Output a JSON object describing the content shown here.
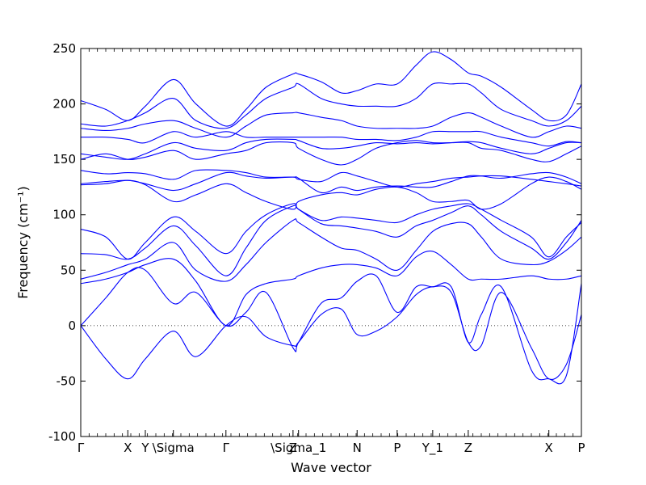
{
  "chart_data": {
    "type": "line",
    "title": "",
    "xlabel": "Wave vector",
    "ylabel": "Frequency (cm⁻¹)",
    "ylim": [
      -100,
      250
    ],
    "xlim": [
      0,
      1
    ],
    "yticks": [
      -100,
      -50,
      0,
      50,
      100,
      150,
      200,
      250
    ],
    "grid": false,
    "legend": "none",
    "line_color": "#0000ff",
    "high_symmetry_points": [
      {
        "label": "Γ",
        "x": 0.0
      },
      {
        "label": "X",
        "x": 0.094
      },
      {
        "label": "Y",
        "x": 0.129
      },
      {
        "label": "\\Sigma",
        "x": 0.185
      },
      {
        "label": "Γ",
        "x": 0.29
      },
      {
        "label": "Z",
        "x": 0.424
      },
      {
        "label": "\\Sigma_1",
        "x": 0.435
      },
      {
        "label": "N",
        "x": 0.552
      },
      {
        "label": "P",
        "x": 0.632
      },
      {
        "label": "Y_1",
        "x": 0.703
      },
      {
        "label": "Z",
        "x": 0.774
      },
      {
        "label": "X",
        "x": 0.935
      },
      {
        "label": "P",
        "x": 1.0
      }
    ],
    "series": [
      {
        "x": [
          0,
          0.05,
          0.094,
          0.129,
          0.185,
          0.23,
          0.29,
          0.33,
          0.37,
          0.424,
          0.435,
          0.48,
          0.52,
          0.552,
          0.59,
          0.632,
          0.67,
          0.703,
          0.74,
          0.774,
          0.8,
          0.84,
          0.9,
          0.935,
          0.97,
          1.0
        ],
        "y": [
          0,
          -30,
          -48,
          -30,
          -5,
          -28,
          0,
          8,
          -10,
          -18,
          -15,
          10,
          15,
          -8,
          -5,
          8,
          28,
          35,
          30,
          -15,
          -18,
          30,
          -20,
          -48,
          -35,
          10
        ]
      },
      {
        "x": [
          0,
          0.05,
          0.094,
          0.129,
          0.185,
          0.23,
          0.29,
          0.33,
          0.37,
          0.424,
          0.435,
          0.48,
          0.52,
          0.552,
          0.59,
          0.632,
          0.67,
          0.703,
          0.74,
          0.774,
          0.8,
          0.84,
          0.9,
          0.935,
          0.97,
          1.0
        ],
        "y": [
          0,
          25,
          48,
          50,
          20,
          30,
          0,
          12,
          30,
          -20,
          -15,
          20,
          25,
          40,
          45,
          12,
          35,
          35,
          35,
          -15,
          10,
          35,
          -40,
          -48,
          -45,
          38
        ]
      },
      {
        "x": [
          0,
          0.05,
          0.094,
          0.129,
          0.185,
          0.23,
          0.29,
          0.33,
          0.37,
          0.424,
          0.435,
          0.48,
          0.52,
          0.552,
          0.59,
          0.632,
          0.67,
          0.703,
          0.74,
          0.774,
          0.8,
          0.84,
          0.9,
          0.935,
          0.97,
          1.0
        ],
        "y": [
          38,
          42,
          48,
          55,
          60,
          40,
          0,
          28,
          38,
          42,
          45,
          52,
          55,
          55,
          52,
          45,
          62,
          67,
          55,
          42,
          42,
          42,
          45,
          42,
          42,
          45
        ]
      },
      {
        "x": [
          0,
          0.05,
          0.094,
          0.129,
          0.185,
          0.23,
          0.29,
          0.33,
          0.37,
          0.424,
          0.435,
          0.48,
          0.52,
          0.552,
          0.59,
          0.632,
          0.67,
          0.703,
          0.74,
          0.774,
          0.8,
          0.84,
          0.9,
          0.935,
          0.97,
          1.0
        ],
        "y": [
          42,
          48,
          55,
          60,
          75,
          50,
          40,
          55,
          75,
          95,
          93,
          80,
          70,
          68,
          60,
          50,
          68,
          85,
          92,
          92,
          80,
          60,
          55,
          58,
          68,
          80
        ]
      },
      {
        "x": [
          0,
          0.05,
          0.094,
          0.129,
          0.185,
          0.23,
          0.29,
          0.33,
          0.37,
          0.424,
          0.435,
          0.48,
          0.52,
          0.552,
          0.59,
          0.632,
          0.67,
          0.703,
          0.74,
          0.774,
          0.8,
          0.84,
          0.9,
          0.935,
          0.97,
          1.0
        ],
        "y": [
          65,
          64,
          60,
          70,
          90,
          72,
          45,
          70,
          95,
          108,
          105,
          92,
          90,
          88,
          85,
          80,
          90,
          95,
          102,
          108,
          100,
          85,
          70,
          60,
          75,
          95
        ]
      },
      {
        "x": [
          0,
          0.05,
          0.094,
          0.129,
          0.185,
          0.23,
          0.29,
          0.33,
          0.37,
          0.424,
          0.435,
          0.48,
          0.52,
          0.552,
          0.59,
          0.632,
          0.67,
          0.703,
          0.74,
          0.774,
          0.8,
          0.84,
          0.9,
          0.935,
          0.97,
          1.0
        ],
        "y": [
          87,
          80,
          60,
          75,
          98,
          85,
          65,
          85,
          100,
          110,
          105,
          95,
          98,
          97,
          95,
          93,
          100,
          105,
          108,
          110,
          105,
          95,
          80,
          62,
          80,
          93
        ]
      },
      {
        "x": [
          0,
          0.05,
          0.094,
          0.129,
          0.185,
          0.23,
          0.29,
          0.33,
          0.37,
          0.424,
          0.435,
          0.48,
          0.52,
          0.552,
          0.59,
          0.632,
          0.67,
          0.703,
          0.74,
          0.774,
          0.8,
          0.84,
          0.9,
          0.935,
          0.97,
          1.0
        ],
        "y": [
          127,
          128,
          131,
          127,
          112,
          118,
          128,
          120,
          112,
          105,
          112,
          118,
          120,
          118,
          123,
          125,
          120,
          112,
          112,
          113,
          105,
          110,
          128,
          134,
          130,
          123
        ]
      },
      {
        "x": [
          0,
          0.05,
          0.094,
          0.129,
          0.185,
          0.23,
          0.29,
          0.33,
          0.37,
          0.424,
          0.435,
          0.48,
          0.52,
          0.552,
          0.59,
          0.632,
          0.67,
          0.703,
          0.74,
          0.774,
          0.8,
          0.84,
          0.9,
          0.935,
          0.97,
          1.0
        ],
        "y": [
          128,
          130,
          131,
          128,
          122,
          128,
          138,
          135,
          133,
          134,
          132,
          130,
          138,
          135,
          130,
          125,
          128,
          130,
          133,
          134,
          135,
          135,
          132,
          130,
          128,
          126
        ]
      },
      {
        "x": [
          0,
          0.05,
          0.094,
          0.129,
          0.185,
          0.23,
          0.29,
          0.33,
          0.37,
          0.424,
          0.435,
          0.48,
          0.52,
          0.552,
          0.59,
          0.632,
          0.67,
          0.703,
          0.74,
          0.774,
          0.8,
          0.84,
          0.9,
          0.935,
          0.97,
          1.0
        ],
        "y": [
          140,
          137,
          138,
          137,
          132,
          140,
          140,
          138,
          134,
          134,
          133,
          120,
          125,
          122,
          125,
          126,
          125,
          125,
          130,
          135,
          135,
          133,
          137,
          138,
          134,
          128
        ]
      },
      {
        "x": [
          0,
          0.05,
          0.094,
          0.129,
          0.185,
          0.23,
          0.29,
          0.33,
          0.37,
          0.424,
          0.435,
          0.48,
          0.52,
          0.552,
          0.59,
          0.632,
          0.67,
          0.703,
          0.74,
          0.774,
          0.8,
          0.84,
          0.9,
          0.935,
          0.97,
          1.0
        ],
        "y": [
          150,
          155,
          150,
          152,
          158,
          150,
          155,
          158,
          165,
          165,
          160,
          150,
          145,
          150,
          160,
          165,
          167,
          165,
          165,
          165,
          160,
          158,
          150,
          148,
          155,
          162
        ]
      },
      {
        "x": [
          0,
          0.05,
          0.094,
          0.129,
          0.185,
          0.23,
          0.29,
          0.33,
          0.37,
          0.424,
          0.435,
          0.48,
          0.52,
          0.552,
          0.59,
          0.632,
          0.67,
          0.703,
          0.74,
          0.774,
          0.8,
          0.84,
          0.9,
          0.935,
          0.97,
          1.0
        ],
        "y": [
          155,
          152,
          150,
          155,
          165,
          160,
          158,
          165,
          168,
          168,
          167,
          160,
          160,
          162,
          165,
          164,
          165,
          164,
          165,
          166,
          165,
          160,
          155,
          160,
          165,
          165
        ]
      },
      {
        "x": [
          0,
          0.05,
          0.094,
          0.129,
          0.185,
          0.23,
          0.29,
          0.33,
          0.37,
          0.424,
          0.435,
          0.48,
          0.52,
          0.552,
          0.59,
          0.632,
          0.67,
          0.703,
          0.74,
          0.774,
          0.8,
          0.84,
          0.9,
          0.935,
          0.97,
          1.0
        ],
        "y": [
          170,
          170,
          168,
          165,
          175,
          170,
          175,
          170,
          170,
          170,
          170,
          170,
          170,
          168,
          168,
          167,
          170,
          175,
          175,
          175,
          175,
          170,
          165,
          162,
          166,
          165
        ]
      },
      {
        "x": [
          0,
          0.05,
          0.094,
          0.129,
          0.185,
          0.23,
          0.29,
          0.33,
          0.37,
          0.424,
          0.435,
          0.48,
          0.52,
          0.552,
          0.59,
          0.632,
          0.67,
          0.703,
          0.74,
          0.774,
          0.8,
          0.84,
          0.9,
          0.935,
          0.97,
          1.0
        ],
        "y": [
          178,
          176,
          178,
          182,
          185,
          178,
          170,
          180,
          190,
          192,
          192,
          188,
          185,
          180,
          178,
          178,
          178,
          180,
          188,
          192,
          188,
          180,
          170,
          175,
          180,
          178
        ]
      },
      {
        "x": [
          0,
          0.05,
          0.094,
          0.129,
          0.185,
          0.23,
          0.29,
          0.33,
          0.37,
          0.424,
          0.435,
          0.48,
          0.52,
          0.552,
          0.59,
          0.632,
          0.67,
          0.703,
          0.74,
          0.774,
          0.8,
          0.84,
          0.9,
          0.935,
          0.97,
          1.0
        ],
        "y": [
          182,
          180,
          185,
          192,
          205,
          185,
          178,
          190,
          205,
          215,
          218,
          205,
          200,
          198,
          198,
          198,
          205,
          218,
          218,
          218,
          210,
          195,
          185,
          180,
          185,
          198
        ]
      },
      {
        "x": [
          0,
          0.05,
          0.094,
          0.129,
          0.185,
          0.23,
          0.29,
          0.33,
          0.37,
          0.424,
          0.435,
          0.48,
          0.52,
          0.552,
          0.59,
          0.632,
          0.67,
          0.703,
          0.74,
          0.774,
          0.8,
          0.84,
          0.9,
          0.935,
          0.97,
          1.0
        ],
        "y": [
          203,
          195,
          185,
          198,
          222,
          200,
          180,
          195,
          215,
          227,
          227,
          220,
          210,
          212,
          218,
          218,
          235,
          247,
          240,
          228,
          225,
          215,
          195,
          185,
          190,
          218
        ]
      }
    ]
  }
}
